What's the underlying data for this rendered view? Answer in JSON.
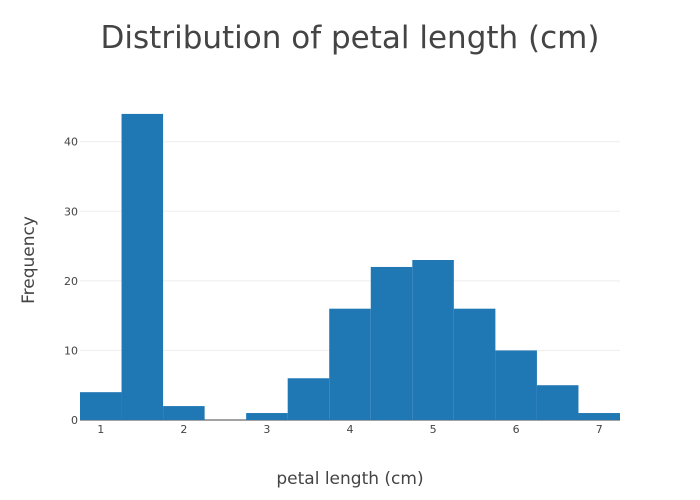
{
  "chart_data": {
    "type": "bar",
    "title": "Distribution of petal length (cm)",
    "xlabel": "petal length (cm)",
    "ylabel": "Frequency",
    "bar_color": "#1f77b4",
    "xlim": [
      0.75,
      7.25
    ],
    "ylim": [
      0,
      46
    ],
    "xticks": [
      1,
      2,
      3,
      4,
      5,
      6,
      7
    ],
    "yticks": [
      0,
      10,
      20,
      30,
      40
    ],
    "grid": true,
    "bins": [
      {
        "x0": 0.75,
        "x1": 1.25,
        "count": 4
      },
      {
        "x0": 1.25,
        "x1": 1.75,
        "count": 44
      },
      {
        "x0": 1.75,
        "x1": 2.25,
        "count": 2
      },
      {
        "x0": 2.25,
        "x1": 2.75,
        "count": 0
      },
      {
        "x0": 2.75,
        "x1": 3.25,
        "count": 1
      },
      {
        "x0": 3.25,
        "x1": 3.75,
        "count": 6
      },
      {
        "x0": 3.75,
        "x1": 4.25,
        "count": 16
      },
      {
        "x0": 4.25,
        "x1": 4.75,
        "count": 22
      },
      {
        "x0": 4.75,
        "x1": 5.25,
        "count": 23
      },
      {
        "x0": 5.25,
        "x1": 5.75,
        "count": 16
      },
      {
        "x0": 5.75,
        "x1": 6.25,
        "count": 10
      },
      {
        "x0": 6.25,
        "x1": 6.75,
        "count": 5
      },
      {
        "x0": 6.75,
        "x1": 7.25,
        "count": 1
      }
    ]
  }
}
